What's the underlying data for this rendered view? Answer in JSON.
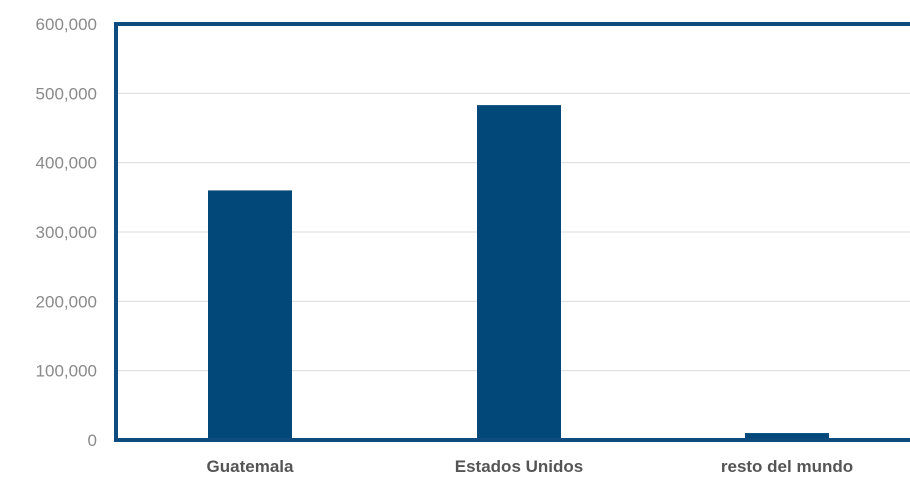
{
  "chart_data": {
    "type": "bar",
    "categories": [
      "Guatemala",
      "Estados Unidos",
      "resto del mundo"
    ],
    "values": [
      360000,
      483000,
      10000
    ],
    "ylim": [
      0,
      600000
    ],
    "yticks": [
      0,
      100000,
      200000,
      300000,
      400000,
      500000,
      600000
    ],
    "ytick_labels": [
      "0",
      "100,000",
      "200,000",
      "300,000",
      "400,000",
      "500,000",
      "600,000"
    ],
    "grid": true,
    "title": "",
    "xlabel": "",
    "ylabel": "",
    "colors": {
      "bar": "#02497a",
      "frame": "#0e4c80"
    }
  }
}
